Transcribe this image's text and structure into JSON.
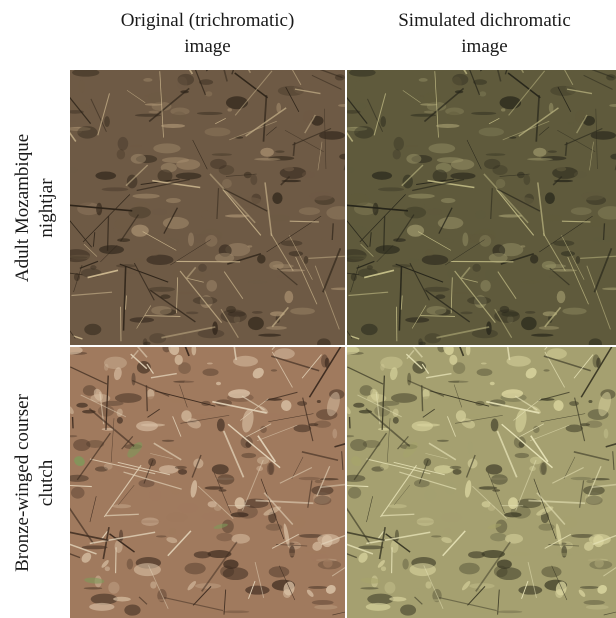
{
  "columns": [
    {
      "line1": "Original (trichromatic)",
      "line2": "image"
    },
    {
      "line1": "Simulated dichromatic",
      "line2": "image"
    }
  ],
  "rows": [
    {
      "line1": "Adult Mozambique",
      "line2": "nightjar"
    },
    {
      "line1": "Bronze-winged courser",
      "line2": "clutch"
    }
  ],
  "palettes": {
    "r1_original": {
      "base": "#6e5a45",
      "dark": "#2e2419",
      "light": "#a89070",
      "straw": "#c9b48c"
    },
    "r1_simulated": {
      "base": "#5f5a3c",
      "dark": "#26251a",
      "light": "#9c966a",
      "straw": "#c2bc86"
    },
    "r2_original": {
      "base": "#a07a5e",
      "dark": "#3e2c20",
      "light": "#d8c0a4",
      "straw": "#e2d2b8",
      "accent": "#7e9a5a"
    },
    "r2_simulated": {
      "base": "#a5a070",
      "dark": "#3c3a26",
      "light": "#d9d49e",
      "straw": "#e6e2b6",
      "accent": "#a6a46a"
    }
  }
}
